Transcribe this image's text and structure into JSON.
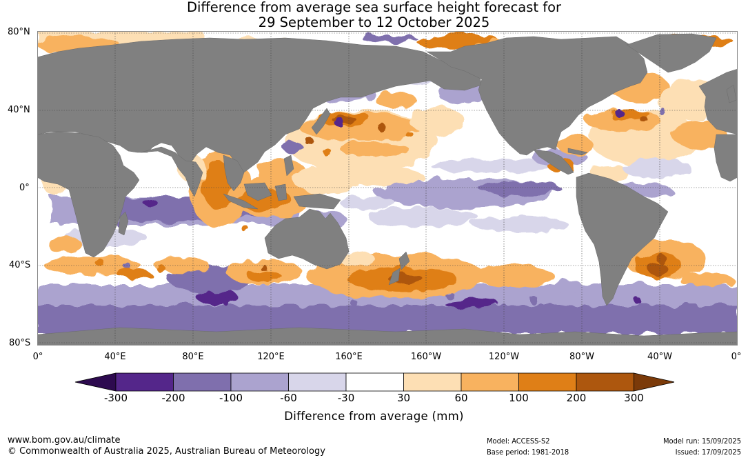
{
  "title": {
    "line1": "Difference from average sea surface height forecast for",
    "line2": "29 September to 12 October 2025"
  },
  "lat_labels": [
    "80°N",
    "40°N",
    "0°",
    "40°S",
    "80°S"
  ],
  "lon_labels": [
    "0°",
    "40°E",
    "80°E",
    "120°E",
    "160°E",
    "160°W",
    "120°W",
    "80°W",
    "40°W",
    "0°"
  ],
  "colorbar": {
    "labels": [
      "-300",
      "-200",
      "-100",
      "-60",
      "-30",
      "30",
      "60",
      "100",
      "200",
      "300"
    ],
    "colors": [
      "#2d0a4f",
      "#54268a",
      "#7f6fad",
      "#aba3cf",
      "#d8d6ea",
      "#ffffff",
      "#fddfb4",
      "#f8b25f",
      "#df7f17",
      "#ad570e",
      "#7b3a09"
    ],
    "title": "Difference from average (mm)"
  },
  "land_color": "#808080",
  "footer": {
    "url": "www.bom.gov.au/climate",
    "copyright": "© Commonwealth of Australia 2025, Australian Bureau of Meteorology",
    "model": "Model: ACCESS-S2",
    "base_period": "Base period: 1981-2018",
    "model_run": "Model run: 15/09/2025",
    "issued": "Issued: 17/09/2025"
  }
}
